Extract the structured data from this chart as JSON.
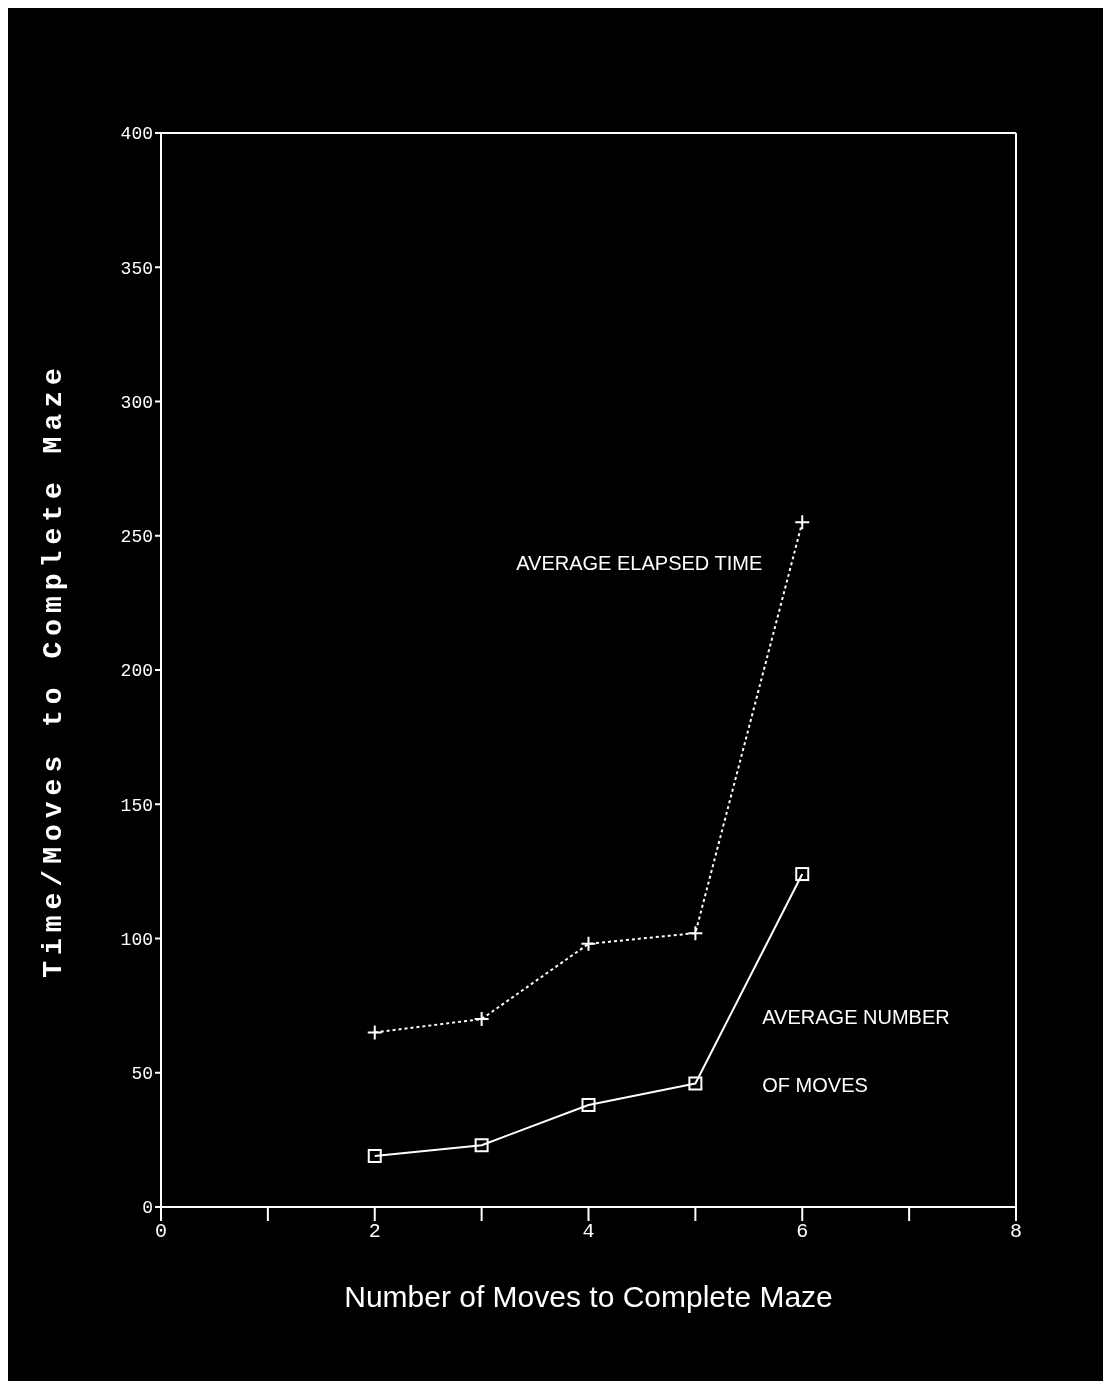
{
  "chart_data": {
    "type": "line",
    "xlabel": "Number of Moves to Complete Maze",
    "ylabel": "Time/Moves to Complete Maze",
    "x": [
      2,
      3,
      4,
      5,
      6
    ],
    "series": [
      {
        "name": "AVERAGE ELAPSED TIME",
        "color": "#ffffff",
        "values": [
          65,
          70,
          98,
          102,
          255
        ],
        "marker": "cross",
        "line_style": "dotted"
      },
      {
        "name": "AVERAGE NUMBER OF MOVES",
        "color": "#ffffff",
        "values": [
          19,
          23,
          38,
          46,
          124
        ],
        "marker": "square",
        "line_style": "solid"
      }
    ],
    "xlim": [
      0,
      8
    ],
    "xticks": [
      0,
      {
        "value": 1,
        "label": null
      },
      2,
      {
        "value": 3,
        "label": null
      },
      4,
      {
        "value": 5,
        "label": null
      },
      6,
      {
        "value": 7,
        "label": null
      },
      8
    ],
    "ylim": [
      0,
      400
    ],
    "yticks": [
      0,
      50,
      100,
      150,
      200,
      250,
      300,
      350,
      400
    ],
    "grid": false
  }
}
